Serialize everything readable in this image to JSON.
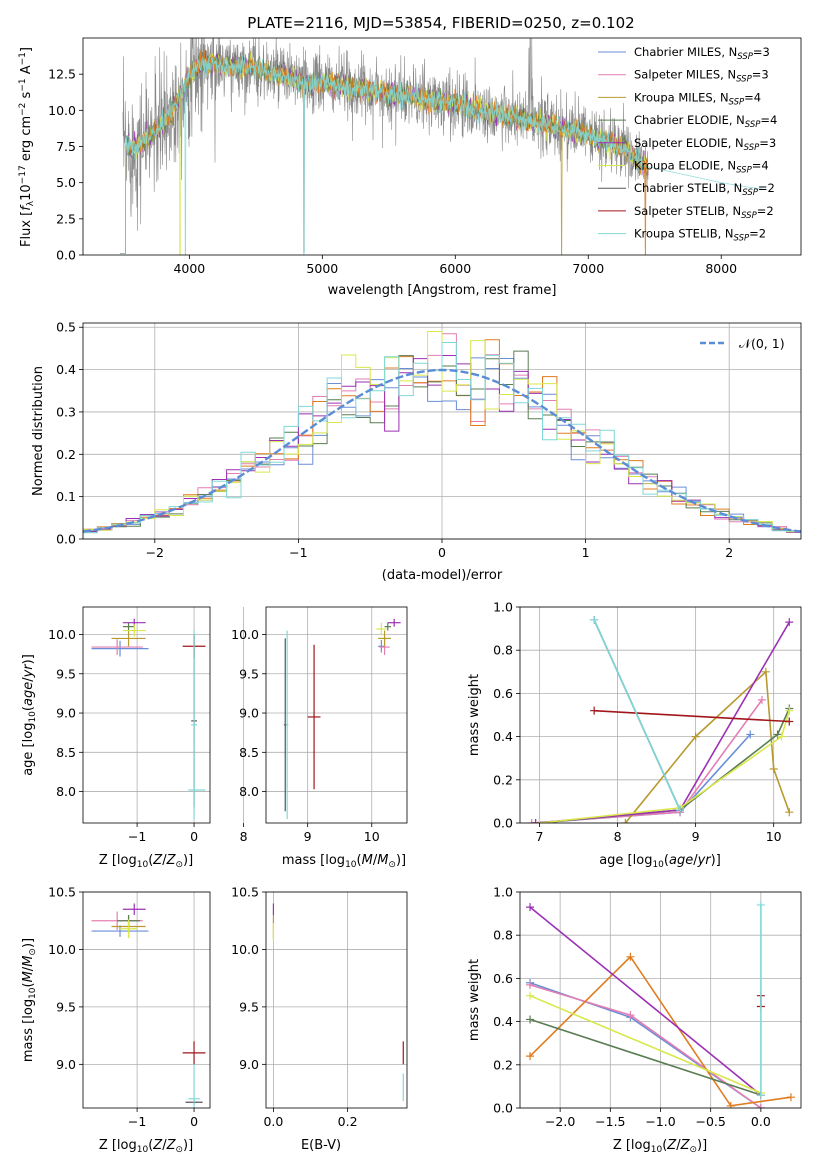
{
  "figure_title": "PLATE=2116, MJD=53854, FIBERID=0250, z=0.102",
  "colors": {
    "Chabrier MILES": "#6a8ed8",
    "Salpeter MILES": "#e47fb3",
    "Kroupa MILES": "#b89a2f",
    "Chabrier ELODIE": "#5a7d52",
    "Salpeter ELODIE": "#9b30b5",
    "Kroupa ELODIE": "#d8e84a",
    "Chabrier STELIB": "#555555",
    "Salpeter STELIB": "#a0161a",
    "Kroupa STELIB": "#7fd8d8",
    "orange": "#e07c20",
    "gray": "#888888"
  },
  "chart_data": [
    {
      "id": "spectrum",
      "type": "line",
      "xlabel": "wavelength [Angstrom, rest frame]",
      "ylabel": "Flux [f_λ 10^-17 erg cm^-2 s^-1 A^-1]",
      "xlim": [
        3200,
        8600
      ],
      "ylim": [
        0,
        15
      ],
      "xticks": [
        "4000",
        "5000",
        "6000",
        "7000",
        "8000"
      ],
      "yticks": [
        "0.0",
        "2.5",
        "5.0",
        "7.5",
        "10.0",
        "12.5"
      ],
      "legend_position": "upper right",
      "legend": [
        {
          "label": "Chabrier MILES, N_SSP=3",
          "base": "Chabrier MILES, N",
          "sub": "SSP",
          "tail": "=3",
          "color_key": "Chabrier MILES"
        },
        {
          "label": "Salpeter MILES, N_SSP=3",
          "base": "Salpeter MILES, N",
          "sub": "SSP",
          "tail": "=3",
          "color_key": "Salpeter MILES"
        },
        {
          "label": "Kroupa MILES, N_SSP=4",
          "base": "Kroupa MILES, N",
          "sub": "SSP",
          "tail": "=4",
          "color_key": "Kroupa MILES"
        },
        {
          "label": "Chabrier ELODIE, N_SSP=4",
          "base": "Chabrier ELODIE, N",
          "sub": "SSP",
          "tail": "=4",
          "color_key": "Chabrier ELODIE"
        },
        {
          "label": "Salpeter ELODIE, N_SSP=3",
          "base": "Salpeter ELODIE, N",
          "sub": "SSP",
          "tail": "=3",
          "color_key": "Salpeter ELODIE"
        },
        {
          "label": "Kroupa ELODIE, N_SSP=4",
          "base": "Kroupa ELODIE, N",
          "sub": "SSP",
          "tail": "=4",
          "color_key": "Kroupa ELODIE"
        },
        {
          "label": "Chabrier STELIB, N_SSP=2",
          "base": "Chabrier STELIB, N",
          "sub": "SSP",
          "tail": "=2",
          "color_key": "Chabrier STELIB"
        },
        {
          "label": "Salpeter STELIB, N_SSP=2",
          "base": "Salpeter STELIB, N",
          "sub": "SSP",
          "tail": "=2",
          "color_key": "Salpeter STELIB"
        },
        {
          "label": "Kroupa STELIB, N_SSP=2",
          "base": "Kroupa STELIB, N",
          "sub": "SSP",
          "tail": "=2",
          "color_key": "Kroupa STELIB"
        }
      ],
      "model_continuum": {
        "x": [
          3500,
          3600,
          3700,
          3800,
          3900,
          4000,
          4100,
          4200,
          4300,
          4400,
          4500,
          4600,
          4700,
          4800,
          4860,
          5000,
          5200,
          5400,
          5600,
          5800,
          6000,
          6200,
          6400,
          6600,
          6800,
          7000,
          7100,
          7200,
          7300,
          7400,
          7600,
          7800,
          8000,
          8200,
          8350
        ],
        "y": [
          7.5,
          7.4,
          8.2,
          9.0,
          10.5,
          12.4,
          13.3,
          13.2,
          13.0,
          13.1,
          12.9,
          12.6,
          12.4,
          12.2,
          11.8,
          11.9,
          11.6,
          11.3,
          11.0,
          10.7,
          10.5,
          10.0,
          9.6,
          9.2,
          8.8,
          8.3,
          8.0,
          7.6,
          7.2,
          6.2,
          5.8,
          5.4,
          5.0,
          4.7,
          4.5
        ]
      },
      "observed_range": [
        3500,
        7450
      ]
    },
    {
      "id": "residuals",
      "type": "histogram",
      "xlabel": "(data-model)/error",
      "ylabel": "Normed distribution",
      "xlim": [
        -2.5,
        2.5
      ],
      "ylim": [
        0,
        0.51
      ],
      "xticks": [
        "−2",
        "−1",
        "0",
        "1",
        "2"
      ],
      "yticks": [
        "0.0",
        "0.1",
        "0.2",
        "0.3",
        "0.4",
        "0.5"
      ],
      "legend_position": "upper right",
      "reference_curve": "𝒩(0, 1)",
      "bin_width": 0.1
    },
    {
      "id": "age_vs_Z",
      "type": "errorbar",
      "xlabel": "Z [log10(Z/Z⊙)]",
      "ylabel": "age [log10(age/yr)]",
      "xlim": [
        -1.95,
        0.28
      ],
      "ylim": [
        7.6,
        10.35
      ],
      "xticks": [
        "−1",
        "0"
      ],
      "yticks": [
        "8.0",
        "8.5",
        "9.0",
        "9.5",
        "10.0"
      ],
      "points": [
        {
          "model": "Chabrier MILES",
          "x": -1.3,
          "xerr": 0.5,
          "y": 9.82,
          "yerr": 0.1
        },
        {
          "model": "Salpeter MILES",
          "x": -1.35,
          "xerr": 0.45,
          "y": 9.84,
          "yerr": 0.1
        },
        {
          "model": "Kroupa MILES",
          "x": -1.15,
          "xerr": 0.3,
          "y": 9.95,
          "yerr": 0.1
        },
        {
          "model": "Chabrier ELODIE",
          "x": -1.15,
          "xerr": 0.1,
          "y": 10.1,
          "yerr": 0.05
        },
        {
          "model": "Salpeter ELODIE",
          "x": -1.05,
          "xerr": 0.2,
          "y": 10.15,
          "yerr": 0.05
        },
        {
          "model": "Kroupa ELODIE",
          "x": -1.05,
          "xerr": 0.2,
          "y": 10.05,
          "yerr": 0.08
        },
        {
          "model": "Salpeter STELIB",
          "x": 0.0,
          "xerr": 0.2,
          "y": 9.85,
          "yerr": 0.15
        },
        {
          "model": "Chabrier STELIB",
          "x": 0.0,
          "xerr": 0.05,
          "y": 8.9,
          "yerr": 1.1
        },
        {
          "model": "Kroupa STELIB",
          "x": 0.0,
          "xerr": 0.05,
          "y": 8.85,
          "yerr": 1.2
        },
        {
          "model": "Kroupa STELIB",
          "x": 0.05,
          "xerr": 0.15,
          "y": 8.02,
          "yerr": 0.0
        }
      ]
    },
    {
      "id": "age_vs_mass",
      "type": "errorbar",
      "xlabel": "mass [log10(M/M⊙)]",
      "ylabel": "",
      "xlim": [
        8.35,
        10.55
      ],
      "ylim": [
        7.6,
        10.35
      ],
      "xticks": [
        "8",
        "9",
        "10"
      ],
      "yticks": [
        "8.0",
        "8.5",
        "9.0",
        "9.5",
        "10.0"
      ],
      "points": [
        {
          "model": "Chabrier STELIB",
          "x": 8.65,
          "xerr": 0.02,
          "y": 8.85,
          "yerr": 1.1
        },
        {
          "model": "Kroupa STELIB",
          "x": 8.68,
          "xerr": 0.02,
          "y": 8.85,
          "yerr": 1.2
        },
        {
          "model": "Salpeter STELIB",
          "x": 9.1,
          "xerr": 0.1,
          "y": 8.95,
          "yerr": 0.92
        },
        {
          "model": "Chabrier MILES",
          "x": 10.15,
          "xerr": 0.05,
          "y": 9.85,
          "yerr": 0.08
        },
        {
          "model": "Salpeter MILES",
          "x": 10.2,
          "xerr": 0.08,
          "y": 9.84,
          "yerr": 0.1
        },
        {
          "model": "Kroupa MILES",
          "x": 10.2,
          "xerr": 0.1,
          "y": 9.95,
          "yerr": 0.1
        },
        {
          "model": "Kroupa ELODIE",
          "x": 10.15,
          "xerr": 0.08,
          "y": 10.07,
          "yerr": 0.08
        },
        {
          "model": "Salpeter ELODIE",
          "x": 10.35,
          "xerr": 0.1,
          "y": 10.15,
          "yerr": 0.05
        },
        {
          "model": "Chabrier ELODIE",
          "x": 10.25,
          "xerr": 0.05,
          "y": 10.1,
          "yerr": 0.05
        }
      ]
    },
    {
      "id": "weight_vs_age",
      "type": "line",
      "xlabel": "age [log10(age/yr)]",
      "ylabel": "mass weight",
      "xlim": [
        6.75,
        10.35
      ],
      "ylim": [
        0,
        1
      ],
      "xticks": [
        "7",
        "8",
        "9",
        "10"
      ],
      "yticks": [
        "0.0",
        "0.2",
        "0.4",
        "0.6",
        "0.8",
        "1.0"
      ],
      "series": [
        {
          "model": "Chabrier MILES",
          "x": [
            6.95,
            8.8,
            9.7
          ],
          "y": [
            0.0,
            0.05,
            0.41
          ]
        },
        {
          "model": "Salpeter MILES",
          "x": [
            6.9,
            8.8,
            9.85
          ],
          "y": [
            0.0,
            0.05,
            0.57
          ]
        },
        {
          "model": "Kroupa MILES",
          "x": [
            8.1,
            9.0,
            9.9,
            10.0,
            10.2
          ],
          "y": [
            0.0,
            0.4,
            0.7,
            0.25,
            0.05
          ]
        },
        {
          "model": "Chabrier ELODIE",
          "x": [
            7.0,
            8.8,
            10.05,
            10.2
          ],
          "y": [
            0.0,
            0.06,
            0.41,
            0.53
          ]
        },
        {
          "model": "Salpeter ELODIE",
          "x": [
            6.95,
            8.8,
            10.2
          ],
          "y": [
            0.0,
            0.06,
            0.93
          ]
        },
        {
          "model": "Kroupa ELODIE",
          "x": [
            7.0,
            8.8,
            10.1,
            10.2
          ],
          "y": [
            0.0,
            0.07,
            0.4,
            0.52
          ]
        },
        {
          "model": "Salpeter STELIB",
          "x": [
            7.7,
            10.2
          ],
          "y": [
            0.52,
            0.47
          ]
        },
        {
          "model": "Chabrier STELIB",
          "x": [
            7.7,
            8.8
          ],
          "y": [
            0.94,
            0.06
          ]
        },
        {
          "model": "Kroupa STELIB",
          "x": [
            7.7,
            8.8
          ],
          "y": [
            0.94,
            0.06
          ]
        }
      ]
    },
    {
      "id": "mass_vs_Z",
      "type": "errorbar",
      "xlabel": "Z [log10(Z/Z⊙)]",
      "ylabel": "mass [log10(M/M⊙)]",
      "xlim": [
        -1.95,
        0.28
      ],
      "ylim": [
        8.62,
        10.5
      ],
      "xticks": [
        "−1",
        "0"
      ],
      "yticks": [
        "9.0",
        "9.5",
        "10.0",
        "10.5"
      ],
      "points": [
        {
          "model": "Chabrier MILES",
          "x": -1.3,
          "xerr": 0.5,
          "y": 10.16,
          "yerr": 0.05
        },
        {
          "model": "Salpeter MILES",
          "x": -1.35,
          "xerr": 0.45,
          "y": 10.25,
          "yerr": 0.08
        },
        {
          "model": "Kroupa MILES",
          "x": -1.15,
          "xerr": 0.3,
          "y": 10.2,
          "yerr": 0.1
        },
        {
          "model": "Chabrier ELODIE",
          "x": -1.15,
          "xerr": 0.2,
          "y": 10.25,
          "yerr": 0.05
        },
        {
          "model": "Salpeter ELODIE",
          "x": -1.05,
          "xerr": 0.2,
          "y": 10.35,
          "yerr": 0.05
        },
        {
          "model": "Kroupa ELODIE",
          "x": -1.15,
          "xerr": 0.15,
          "y": 10.18,
          "yerr": 0.08
        },
        {
          "model": "Salpeter STELIB",
          "x": 0.0,
          "xerr": 0.2,
          "y": 9.1,
          "yerr": 0.1
        },
        {
          "model": "Chabrier STELIB",
          "x": 0.0,
          "xerr": 0.15,
          "y": 8.67,
          "yerr": 0.02
        },
        {
          "model": "Kroupa STELIB",
          "x": 0.0,
          "xerr": 0.1,
          "y": 8.7,
          "yerr": 0.3
        }
      ]
    },
    {
      "id": "mass_vs_EBV",
      "type": "errorbar",
      "xlabel": "E(B-V)",
      "ylabel": "",
      "xlim": [
        -0.02,
        0.36
      ],
      "ylim": [
        8.62,
        10.5
      ],
      "xticks": [
        "0.0",
        "0.2"
      ],
      "yticks": [
        "9.0",
        "9.5",
        "10.0",
        "10.5"
      ],
      "points": [
        {
          "model": "Salpeter ELODIE",
          "x": 0.0,
          "xerr": 0.0,
          "y": 10.35,
          "yerr": 0.05
        },
        {
          "model": "Kroupa MILES",
          "x": 0.0,
          "xerr": 0.0,
          "y": 10.2,
          "yerr": 0.1
        },
        {
          "model": "Kroupa ELODIE",
          "x": 0.0,
          "xerr": 0.0,
          "y": 10.15,
          "yerr": 0.08
        },
        {
          "model": "Salpeter STELIB",
          "x": 0.35,
          "xerr": 0.0,
          "y": 9.1,
          "yerr": 0.1
        },
        {
          "model": "Kroupa STELIB",
          "x": 0.35,
          "xerr": 0.0,
          "y": 8.8,
          "yerr": 0.12
        }
      ]
    },
    {
      "id": "weight_vs_Z",
      "type": "line",
      "xlabel": "Z [log10(Z/Z⊙)]",
      "ylabel": "mass weight",
      "xlim": [
        -2.4,
        0.4
      ],
      "ylim": [
        0,
        1
      ],
      "xticks": [
        "−2.0",
        "−1.5",
        "−1.0",
        "−0.5",
        "0.0"
      ],
      "yticks": [
        "0.0",
        "0.2",
        "0.4",
        "0.6",
        "0.8",
        "1.0"
      ],
      "series": [
        {
          "model": "Chabrier MILES",
          "x": [
            -2.3,
            -1.3,
            0.0
          ],
          "y": [
            0.58,
            0.42,
            0.0
          ]
        },
        {
          "model": "Salpeter MILES",
          "x": [
            -2.3,
            -1.3,
            0.0
          ],
          "y": [
            0.57,
            0.43,
            0.0
          ]
        },
        {
          "model": "orange",
          "x": [
            -2.3,
            -1.3,
            -0.3,
            0.3
          ],
          "y": [
            0.24,
            0.7,
            0.01,
            0.05
          ]
        },
        {
          "model": "Chabrier ELODIE",
          "x": [
            -2.3,
            0.0
          ],
          "y": [
            0.41,
            0.06
          ]
        },
        {
          "model": "Salpeter ELODIE",
          "x": [
            -2.3,
            0.0
          ],
          "y": [
            0.93,
            0.06
          ]
        },
        {
          "model": "Kroupa ELODIE",
          "x": [
            -2.3,
            0.0
          ],
          "y": [
            0.52,
            0.07
          ]
        },
        {
          "model": "Salpeter STELIB",
          "x": [
            0.0,
            0.0
          ],
          "y": [
            0.47,
            0.52
          ]
        },
        {
          "model": "Kroupa STELIB",
          "x": [
            0.0,
            0.0
          ],
          "y": [
            0.06,
            0.94
          ]
        }
      ]
    }
  ]
}
